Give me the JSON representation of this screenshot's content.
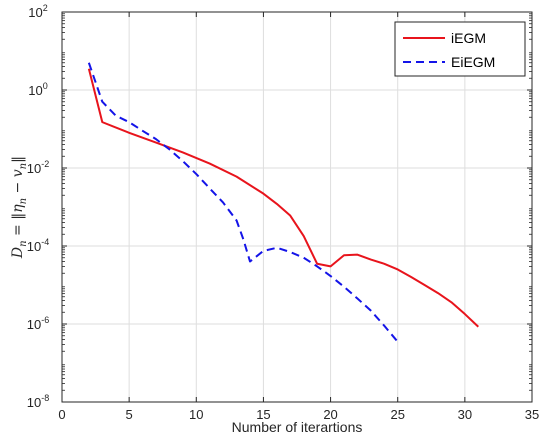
{
  "chart_data": {
    "type": "line",
    "title": "",
    "xlabel": "Number of iterartions",
    "ylabel": "D_n = ||η_n − v_n||",
    "ylabel_parts": {
      "lhs": "D",
      "lhs_sub": "n",
      "eq": " = ‖",
      "eta": "η",
      "eta_sub": "n",
      "minus": " − ",
      "v": "v",
      "v_sub": "n",
      "close": "‖"
    },
    "xlim": [
      0,
      35
    ],
    "ylim": [
      1e-08,
      100
    ],
    "yscale": "log",
    "grid": true,
    "legend_position": "top-right",
    "x_ticks": [
      0,
      5,
      10,
      15,
      20,
      25,
      30,
      35
    ],
    "y_ticks": [
      {
        "exp": -8,
        "base": "10",
        "power": "-8"
      },
      {
        "exp": -6,
        "base": "10",
        "power": "-6"
      },
      {
        "exp": -4,
        "base": "10",
        "power": "-4"
      },
      {
        "exp": -2,
        "base": "10",
        "power": "-2"
      },
      {
        "exp": 0,
        "base": "10",
        "power": "0"
      },
      {
        "exp": 2,
        "base": "10",
        "power": "2"
      }
    ],
    "series": [
      {
        "name": "iEGM",
        "color": "#e8141c",
        "style": "solid",
        "points": [
          [
            2,
            3.5
          ],
          [
            3,
            0.15
          ],
          [
            5,
            0.08
          ],
          [
            7,
            0.045
          ],
          [
            9,
            0.025
          ],
          [
            11,
            0.013
          ],
          [
            13,
            0.006
          ],
          [
            15,
            0.0022
          ],
          [
            16,
            0.0012
          ],
          [
            17,
            0.0006
          ],
          [
            18,
            0.00018
          ],
          [
            19,
            3.5e-05
          ],
          [
            20,
            3e-05
          ],
          [
            21,
            5.8e-05
          ],
          [
            22,
            6e-05
          ],
          [
            23,
            4.5e-05
          ],
          [
            24,
            3.5e-05
          ],
          [
            25,
            2.5e-05
          ],
          [
            26,
            1.6e-05
          ],
          [
            27,
            1e-05
          ],
          [
            28,
            6.2e-06
          ],
          [
            29,
            3.6e-06
          ],
          [
            30,
            1.8e-06
          ],
          [
            31,
            8.5e-07
          ]
        ]
      },
      {
        "name": "EiEGM",
        "color": "#1414e8",
        "style": "dashed",
        "points": [
          [
            2,
            5
          ],
          [
            3,
            0.5
          ],
          [
            4,
            0.22
          ],
          [
            5,
            0.15
          ],
          [
            6,
            0.09
          ],
          [
            7,
            0.055
          ],
          [
            8,
            0.03
          ],
          [
            9,
            0.015
          ],
          [
            10,
            0.007
          ],
          [
            11,
            0.003
          ],
          [
            12,
            0.0013
          ],
          [
            13,
            0.00045
          ],
          [
            13.5,
            0.00015
          ],
          [
            14,
            4e-05
          ],
          [
            15,
            7.5e-05
          ],
          [
            16,
            9e-05
          ],
          [
            17,
            7e-05
          ],
          [
            18,
            5e-05
          ],
          [
            19,
            3e-05
          ],
          [
            20,
            1.7e-05
          ],
          [
            21,
            9e-06
          ],
          [
            22,
            4.5e-06
          ],
          [
            23,
            2.2e-06
          ],
          [
            24,
            9e-07
          ],
          [
            25,
            3.5e-07
          ]
        ]
      }
    ]
  }
}
